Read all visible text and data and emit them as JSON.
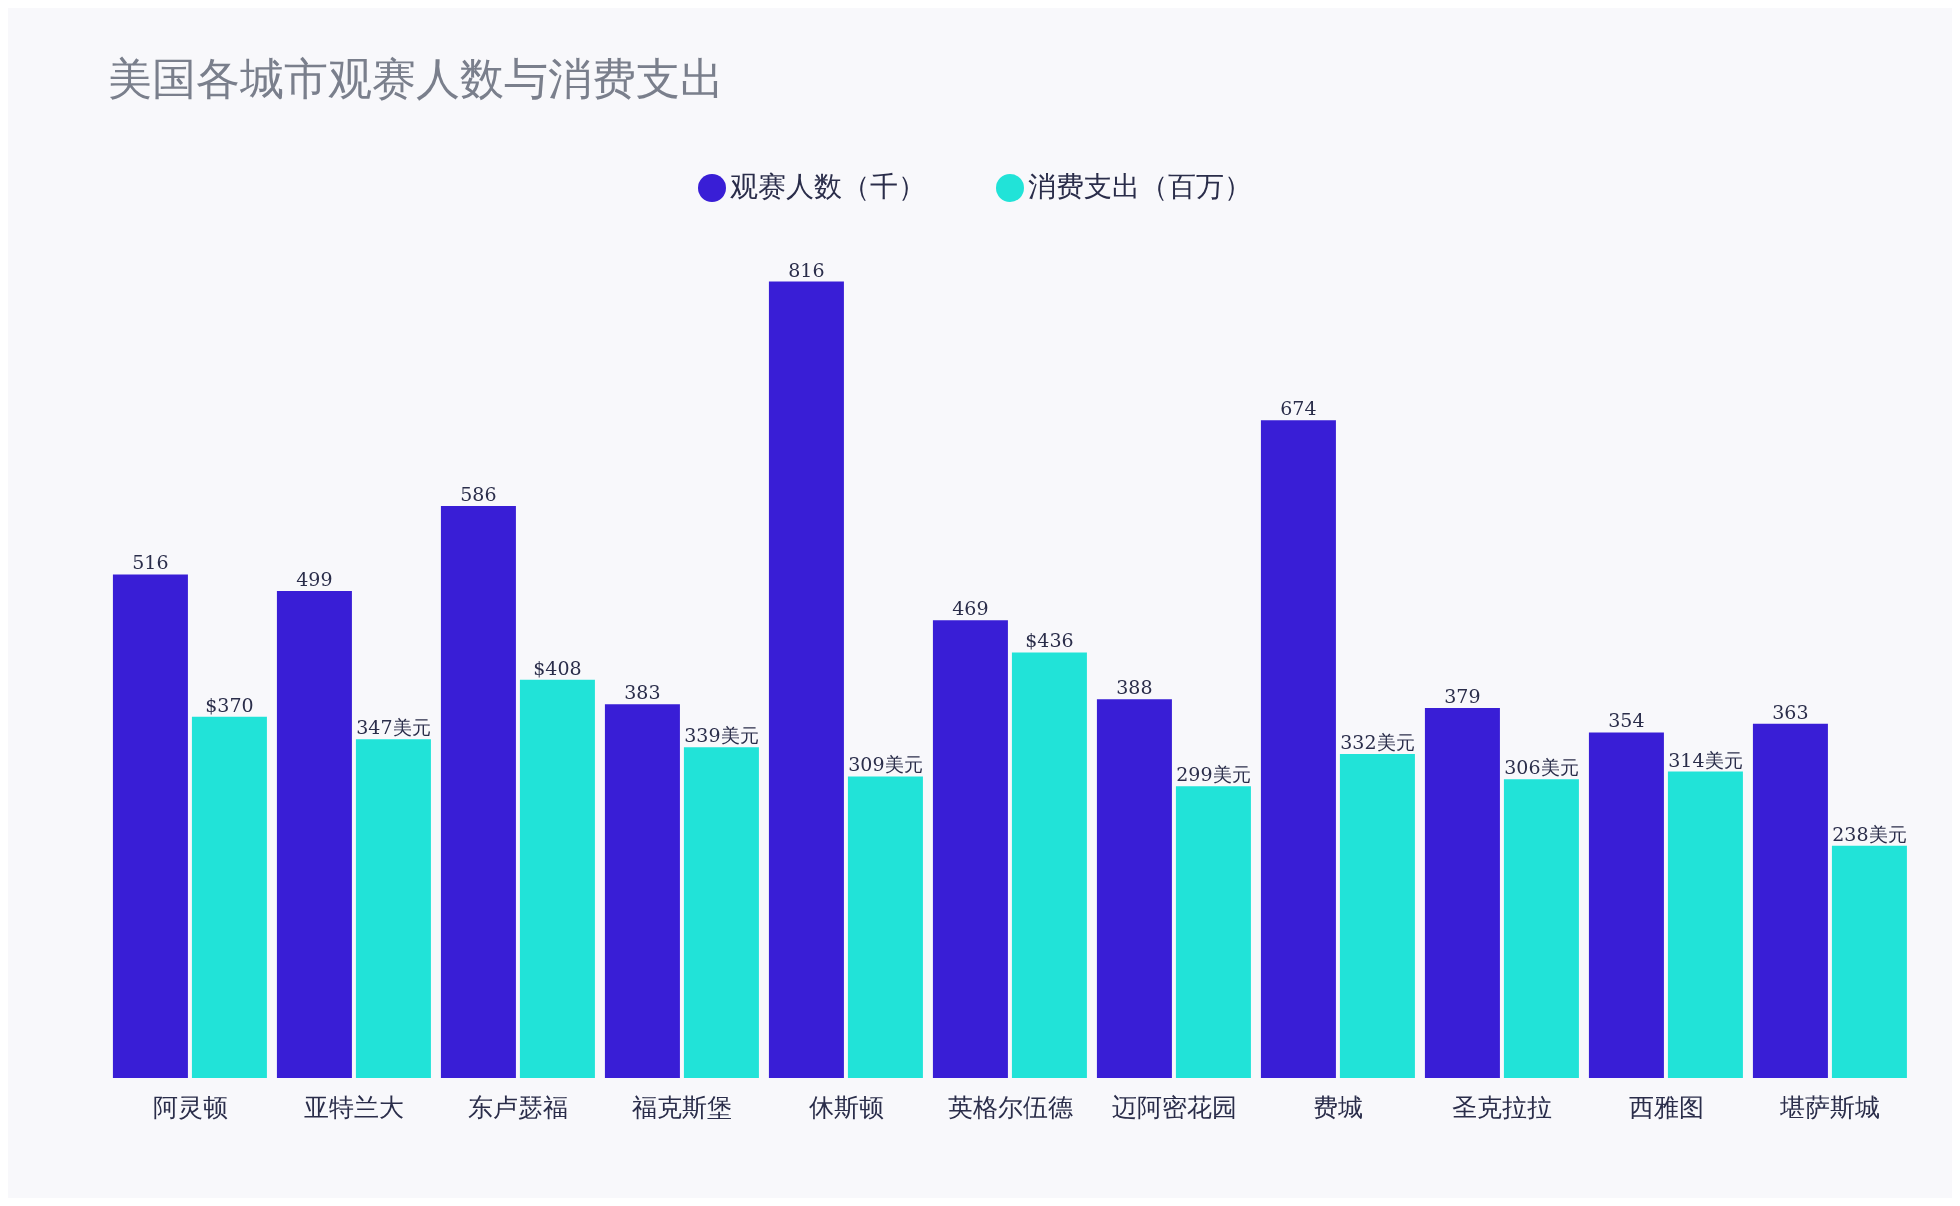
{
  "chart_data": {
    "type": "bar",
    "title": "美国各城市观赛人数与消费支出",
    "categories": [
      "阿灵顿",
      "亚特兰大",
      "东卢瑟福",
      "福克斯堡",
      "休斯顿",
      "英格尔伍德",
      "迈阿密花园",
      "费城",
      "圣克拉拉",
      "西雅图",
      "堪萨斯城"
    ],
    "series": [
      {
        "name": "观赛人数（千）",
        "color": "#391ed6",
        "values": [
          516,
          499,
          586,
          383,
          816,
          469,
          388,
          674,
          379,
          354,
          363
        ]
      },
      {
        "name": "消费支出（百万）",
        "color": "#21e3d8",
        "values": [
          370,
          347,
          408,
          339,
          309,
          436,
          299,
          332,
          306,
          314,
          238
        ],
        "value_labels": [
          "$370",
          "347美元",
          "$408",
          "339美元",
          "309美元",
          "$436",
          "299美元",
          "332美元",
          "306美元",
          "314美元",
          "238美元"
        ]
      }
    ],
    "data_labels": true,
    "legend": "top",
    "grid": false
  }
}
